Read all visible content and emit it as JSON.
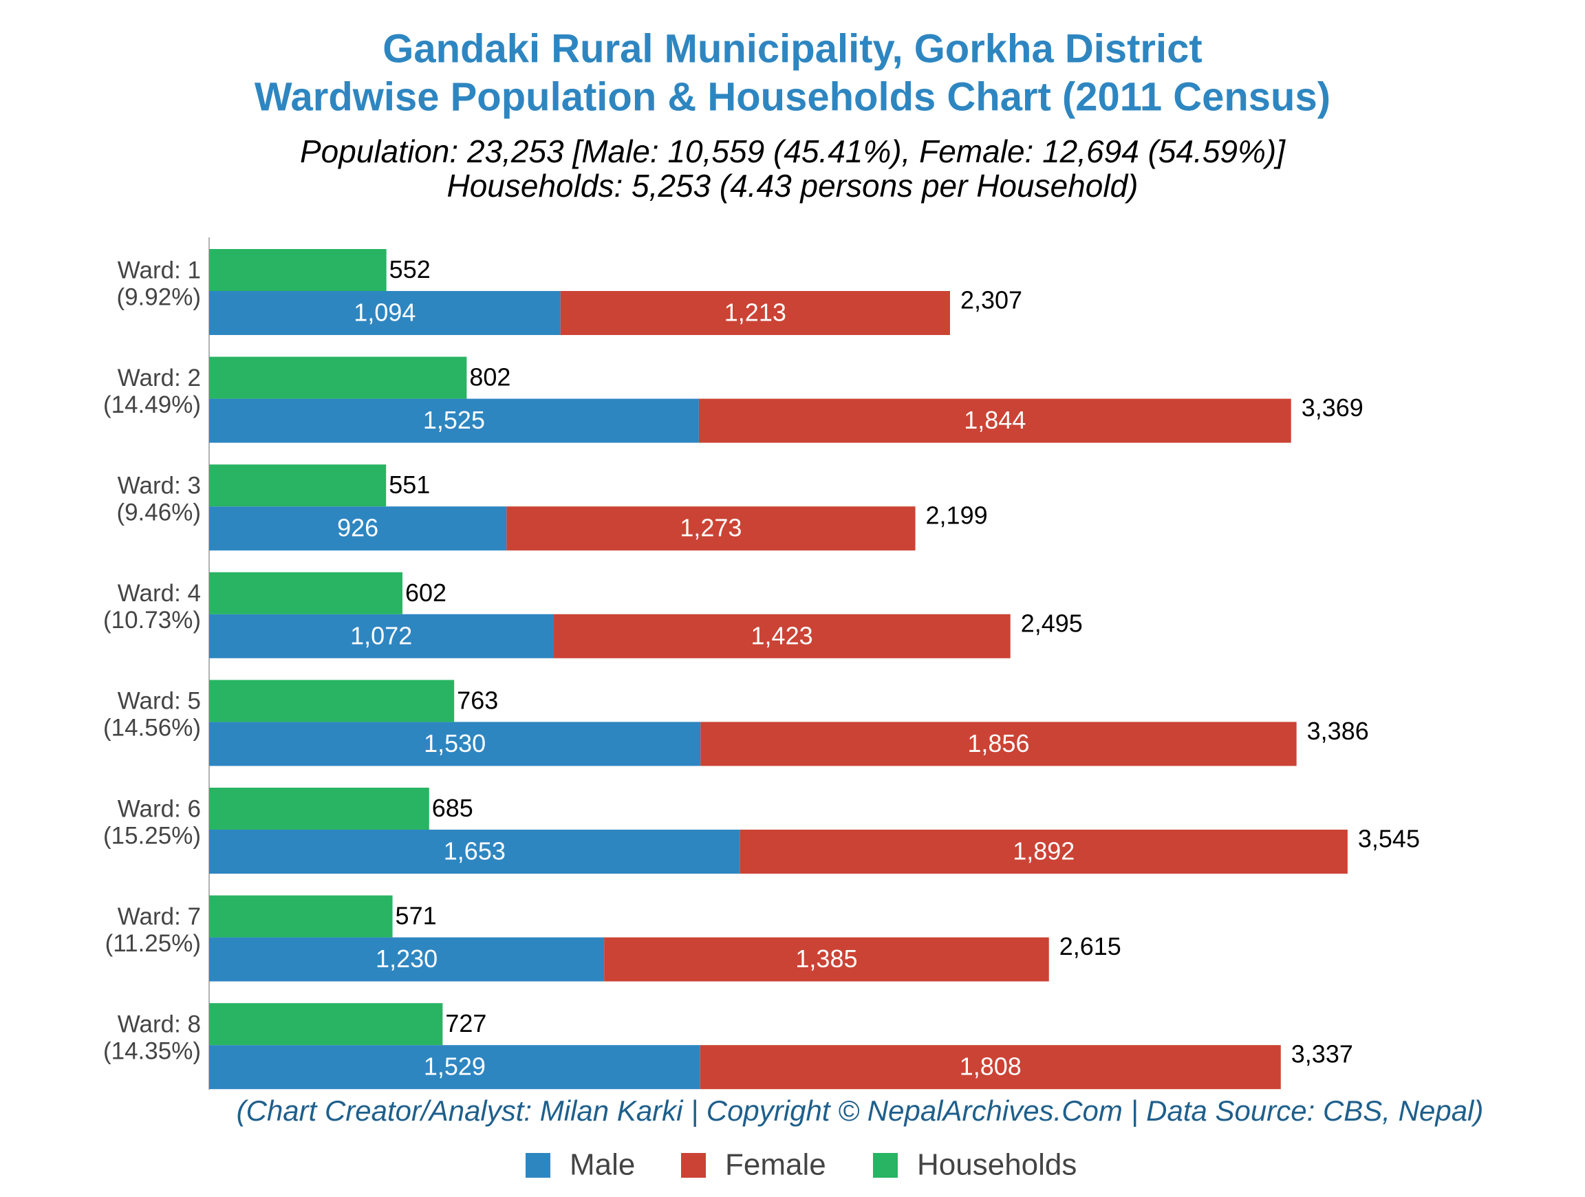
{
  "chart_data": {
    "type": "bar",
    "orientation": "horizontal",
    "title": [
      "Gandaki Rural Municipality, Gorkha District",
      "Wardwise Population & Households Chart (2011 Census)"
    ],
    "subtitle": [
      "Population: 23,253 [Male: 10,559 (45.41%), Female: 12,694 (54.59%)]",
      "Households: 5,253 (4.43 persons per Household)"
    ],
    "source": "(Chart Creator/Analyst: Milan Karki | Copyright © NepalArchives.Com | Data Source: CBS, Nepal)",
    "categories": [
      "Ward: 1",
      "Ward: 2",
      "Ward: 3",
      "Ward: 4",
      "Ward: 5",
      "Ward: 6",
      "Ward: 7",
      "Ward: 8"
    ],
    "category_shares": [
      "(9.92%)",
      "(14.49%)",
      "(9.46%)",
      "(10.73%)",
      "(14.56%)",
      "(15.25%)",
      "(11.25%)",
      "(14.35%)"
    ],
    "series": [
      {
        "name": "Male",
        "color": "#2e86c1",
        "stack": "population",
        "values": [
          1094,
          1525,
          926,
          1072,
          1530,
          1653,
          1230,
          1529
        ],
        "value_labels": [
          "1,094",
          "1,525",
          "926",
          "1,072",
          "1,530",
          "1,653",
          "1,230",
          "1,529"
        ]
      },
      {
        "name": "Female",
        "color": "#cb4335",
        "stack": "population",
        "values": [
          1213,
          1844,
          1273,
          1423,
          1856,
          1892,
          1385,
          1808
        ],
        "value_labels": [
          "1,213",
          "1,844",
          "1,273",
          "1,423",
          "1,856",
          "1,892",
          "1,385",
          "1,808"
        ]
      },
      {
        "name": "Households",
        "color": "#28b463",
        "stack": "households",
        "values": [
          552,
          802,
          551,
          602,
          763,
          685,
          571,
          727
        ],
        "value_labels": [
          "552",
          "802",
          "551",
          "602",
          "763",
          "685",
          "571",
          "727"
        ]
      }
    ],
    "totals": [
      2307,
      3369,
      2199,
      2495,
      3386,
      3545,
      2615,
      3337
    ],
    "total_labels": [
      "2,307",
      "3,369",
      "2,199",
      "2,495",
      "3,386",
      "3,545",
      "2,615",
      "3,337"
    ],
    "xlim": [
      0,
      4250
    ],
    "grid": false,
    "legend": "bottom"
  }
}
